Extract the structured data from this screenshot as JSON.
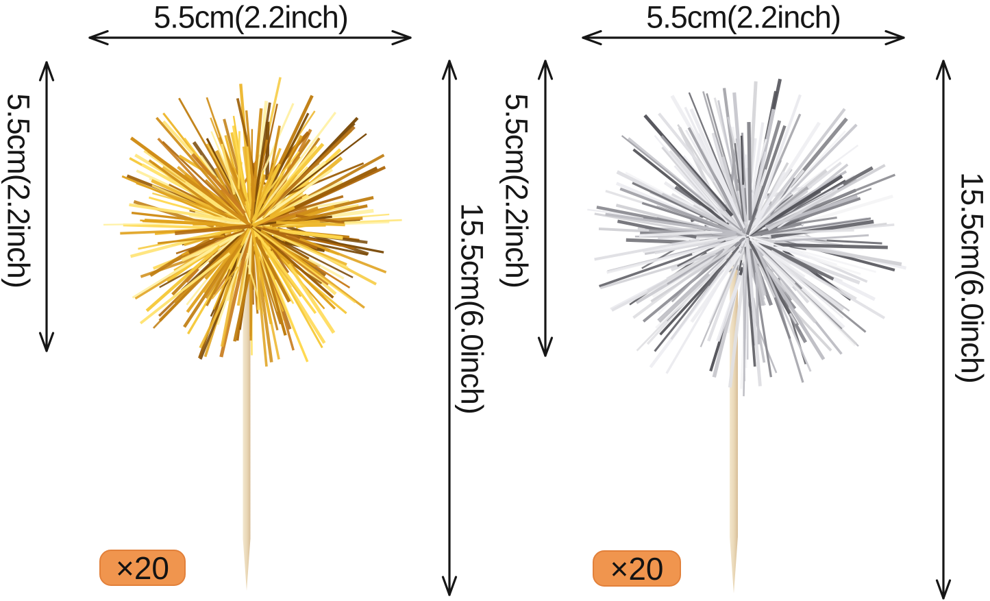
{
  "poms": [
    {
      "variant": "gold",
      "quantity": "×20",
      "width_label": "5.5cm(2.2inch)",
      "pom_height_label": "5.5cm(2.2inch)",
      "total_height_label": "15.5cm(6.0inch)"
    },
    {
      "variant": "silver",
      "quantity": "×20",
      "width_label": "5.5cm(2.2inch)",
      "pom_height_label": "5.5cm(2.2inch)",
      "total_height_label": "15.5cm(6.0inch)"
    }
  ],
  "colors": {
    "background": "#FFFFFF",
    "dimension_lines": "#161616",
    "label_text": "#161616",
    "badge_fill": "#F0954E",
    "badge_border": "#E2803A",
    "badge_text": "#131313",
    "stick_light": "#F3E7CE",
    "stick_mid": "#E9D7B6",
    "stick_dark": "#D7BD97",
    "gold_tinsel": [
      "#7A4A08",
      "#9C5E07",
      "#B06A10",
      "#C07E12",
      "#D08E18",
      "#E0A21E",
      "#EDB62B",
      "#F6C93B",
      "#FFD84F",
      "#FFE474",
      "#FFF0A0",
      "#C97E20"
    ],
    "silver_tinsel": [
      "#55555B",
      "#6E6E74",
      "#8A8A90",
      "#A5A5AB",
      "#BDBDC3",
      "#D2D2D6",
      "#E0E0E4",
      "#EAEAEE",
      "#F4F4F6",
      "#EDEDF1",
      "#DDDDE1",
      "#C8C8CE"
    ]
  }
}
